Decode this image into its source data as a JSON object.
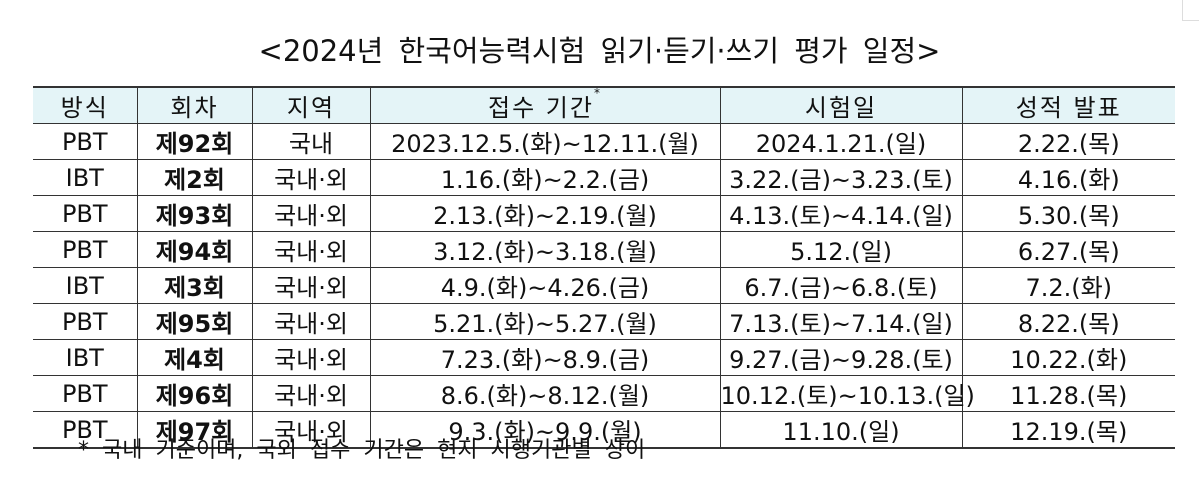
{
  "title": "<2024년 한국어능력시험 읽기·듣기·쓰기 평가 일정>",
  "table": {
    "headers": [
      "방식",
      "회차",
      "지역",
      "접수 기간",
      "시험일",
      "성적 발표"
    ],
    "header_footnote_mark": "*",
    "rows": [
      {
        "method": "PBT",
        "round": "제92회",
        "region": "국내",
        "registration": "2023.12.5.(화)~12.11.(월)",
        "exam_date": "2024.1.21.(일)",
        "results": "2.22.(목)"
      },
      {
        "method": "IBT",
        "round": "제2회",
        "region": "국내·외",
        "registration": "1.16.(화)~2.2.(금)",
        "exam_date": "3.22.(금)~3.23.(토)",
        "results": "4.16.(화)"
      },
      {
        "method": "PBT",
        "round": "제93회",
        "region": "국내·외",
        "registration": "2.13.(화)~2.19.(월)",
        "exam_date": "4.13.(토)~4.14.(일)",
        "results": "5.30.(목)"
      },
      {
        "method": "PBT",
        "round": "제94회",
        "region": "국내·외",
        "registration": "3.12.(화)~3.18.(월)",
        "exam_date": "5.12.(일)",
        "results": "6.27.(목)"
      },
      {
        "method": "IBT",
        "round": "제3회",
        "region": "국내·외",
        "registration": "4.9.(화)~4.26.(금)",
        "exam_date": "6.7.(금)~6.8.(토)",
        "results": "7.2.(화)"
      },
      {
        "method": "PBT",
        "round": "제95회",
        "region": "국내·외",
        "registration": "5.21.(화)~5.27.(월)",
        "exam_date": "7.13.(토)~7.14.(일)",
        "results": "8.22.(목)"
      },
      {
        "method": "IBT",
        "round": "제4회",
        "region": "국내·외",
        "registration": "7.23.(화)~8.9.(금)",
        "exam_date": "9.27.(금)~9.28.(토)",
        "results": "10.22.(화)"
      },
      {
        "method": "PBT",
        "round": "제96회",
        "region": "국내·외",
        "registration": "8.6.(화)~8.12.(월)",
        "exam_date": "10.12.(토)~10.13.(일)",
        "results": "11.28.(목)"
      },
      {
        "method": "PBT",
        "round": "제97회",
        "region": "국내·외",
        "registration": "9.3.(화)~9.9.(월)",
        "exam_date": "11.10.(일)",
        "results": "12.19.(목)"
      }
    ]
  },
  "footnote": "* 국내 기준이며, 국외 접수 기간은 현지 시행기관별 상이",
  "colors": {
    "header_bg": "#e4f4f7",
    "border": "#333333",
    "text": "#111111"
  }
}
